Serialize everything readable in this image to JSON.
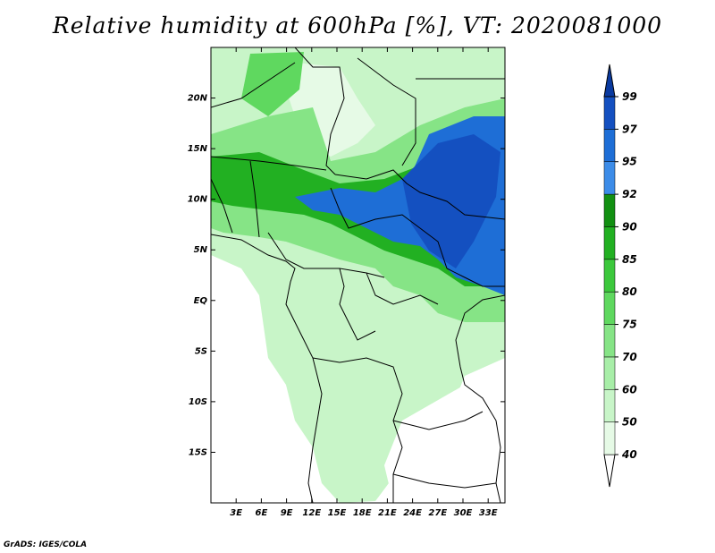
{
  "title": "Relative humidity at 600hPa [%], VT: 2020081000",
  "credit": "GrADS: IGES/COLA",
  "map": {
    "lon_range": [
      0,
      35
    ],
    "lat_range": [
      -20,
      25
    ],
    "lat_ticks": [
      {
        "value": 20,
        "label": "20N"
      },
      {
        "value": 15,
        "label": "15N"
      },
      {
        "value": 10,
        "label": "10N"
      },
      {
        "value": 5,
        "label": "5N"
      },
      {
        "value": 0,
        "label": "EQ"
      },
      {
        "value": -5,
        "label": "5S"
      },
      {
        "value": -10,
        "label": "10S"
      },
      {
        "value": -15,
        "label": "15S"
      }
    ],
    "lon_ticks": [
      {
        "value": 3,
        "label": "3E"
      },
      {
        "value": 6,
        "label": "6E"
      },
      {
        "value": 9,
        "label": "9E"
      },
      {
        "value": 12,
        "label": "12E"
      },
      {
        "value": 15,
        "label": "15E"
      },
      {
        "value": 18,
        "label": "18E"
      },
      {
        "value": 21,
        "label": "21E"
      },
      {
        "value": 24,
        "label": "24E"
      },
      {
        "value": 27,
        "label": "27E"
      },
      {
        "value": 30,
        "label": "30E"
      },
      {
        "value": 33,
        "label": "33E"
      }
    ]
  },
  "colorbar": {
    "levels": [
      "40",
      "50",
      "60",
      "70",
      "75",
      "80",
      "85",
      "90",
      "92",
      "95",
      "97",
      "99"
    ],
    "colors": [
      "#ffffff",
      "#e6fae6",
      "#c8f5c8",
      "#a8eea8",
      "#86e486",
      "#5fd85f",
      "#3cc83c",
      "#22b022",
      "#129012",
      "#3c8ce8",
      "#1e6ed6",
      "#1450c0",
      "#0a3aa0"
    ]
  }
}
